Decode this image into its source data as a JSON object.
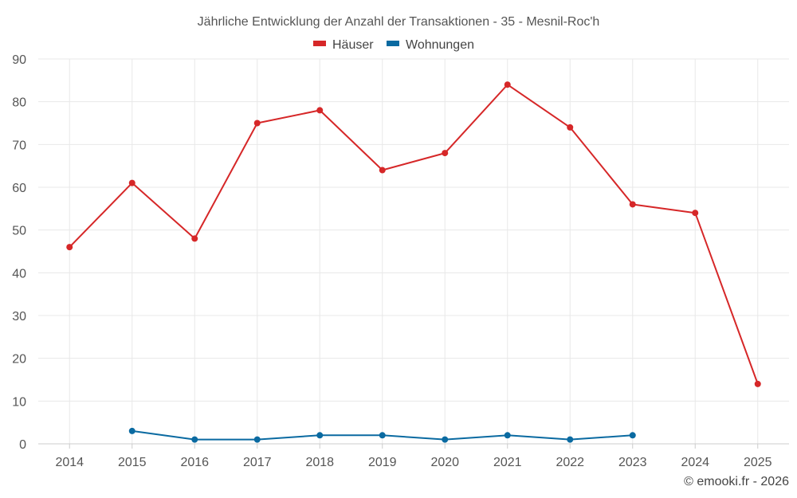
{
  "chart_data": {
    "type": "line",
    "title": "Jährliche Entwicklung der Anzahl der Transaktionen - 35 - Mesnil-Roc'h",
    "categories": [
      "2014",
      "2015",
      "2016",
      "2017",
      "2018",
      "2019",
      "2020",
      "2021",
      "2022",
      "2023",
      "2024",
      "2025"
    ],
    "y_ticks": [
      "0",
      "10",
      "20",
      "30",
      "40",
      "50",
      "60",
      "70",
      "80",
      "90"
    ],
    "ylim": [
      0,
      90
    ],
    "grid": true,
    "legend_position": "top-center",
    "series": [
      {
        "name": "Häuser",
        "color": "#d62728",
        "values": [
          46,
          61,
          48,
          75,
          78,
          64,
          68,
          84,
          74,
          56,
          54,
          14
        ]
      },
      {
        "name": "Wohnungen",
        "color": "#0a6aa1",
        "values": [
          null,
          3,
          1,
          1,
          2,
          2,
          1,
          2,
          1,
          2,
          null,
          null
        ]
      }
    ]
  },
  "footer": {
    "credit": "© emooki.fr - 2026"
  }
}
